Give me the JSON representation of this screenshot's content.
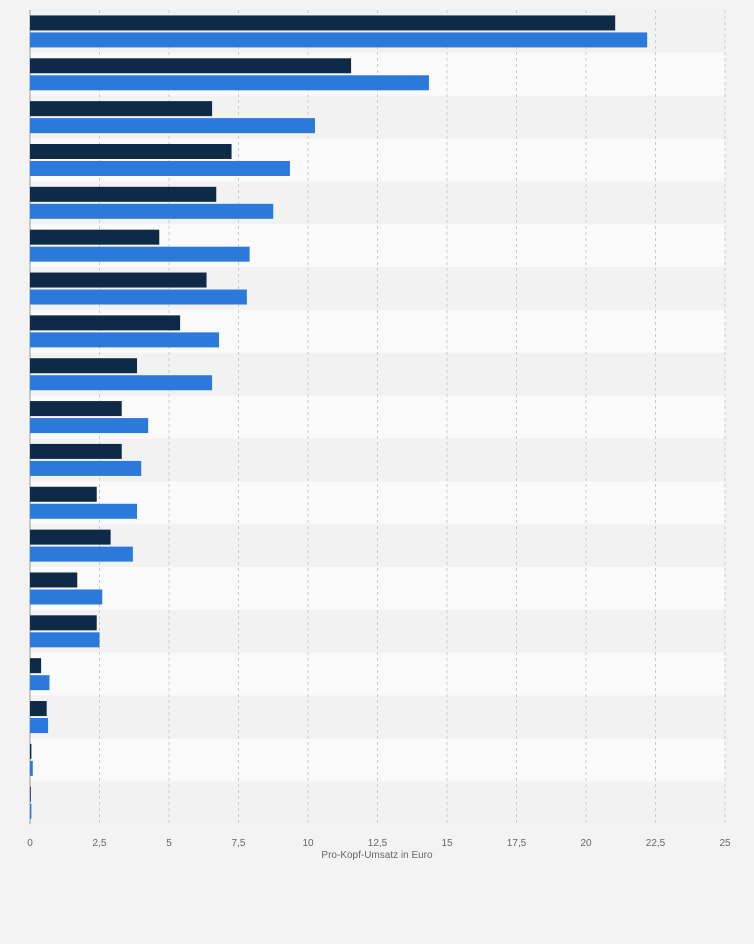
{
  "chart_data": {
    "type": "bar",
    "orientation": "horizontal",
    "categories": [
      "",
      "",
      "",
      "",
      "",
      "",
      "",
      "",
      "",
      "",
      "",
      "",
      "",
      "",
      "",
      "",
      "",
      "",
      ""
    ],
    "series": [
      {
        "color": "#0f2a47",
        "values": [
          21.05,
          11.55,
          6.55,
          7.25,
          6.7,
          4.65,
          6.35,
          5.4,
          3.85,
          3.3,
          3.3,
          2.4,
          2.9,
          1.7,
          2.4,
          0.4,
          0.6,
          0.05,
          0
        ]
      },
      {
        "color": "#2b79db",
        "values": [
          22.2,
          14.35,
          10.25,
          9.35,
          8.75,
          7.9,
          7.8,
          6.8,
          6.55,
          4.25,
          4.0,
          3.85,
          3.7,
          2.6,
          2.5,
          0.7,
          0.65,
          0.1,
          0.05
        ]
      }
    ],
    "xlabel": "Pro-Kopf-Umsatz in Euro",
    "xlim": [
      0,
      25
    ],
    "xticks": [
      "0",
      "2,5",
      "5",
      "7,5",
      "10",
      "12,5",
      "15",
      "17,5",
      "20",
      "22,5",
      "25"
    ],
    "grid": true,
    "legend": "none"
  },
  "colors": {
    "page_background": "#f3f3f3",
    "row_band_dark": "#f2f2f2",
    "row_band_light": "#fafafa",
    "gridline": "#cccccc",
    "tick_label": "#666666"
  }
}
